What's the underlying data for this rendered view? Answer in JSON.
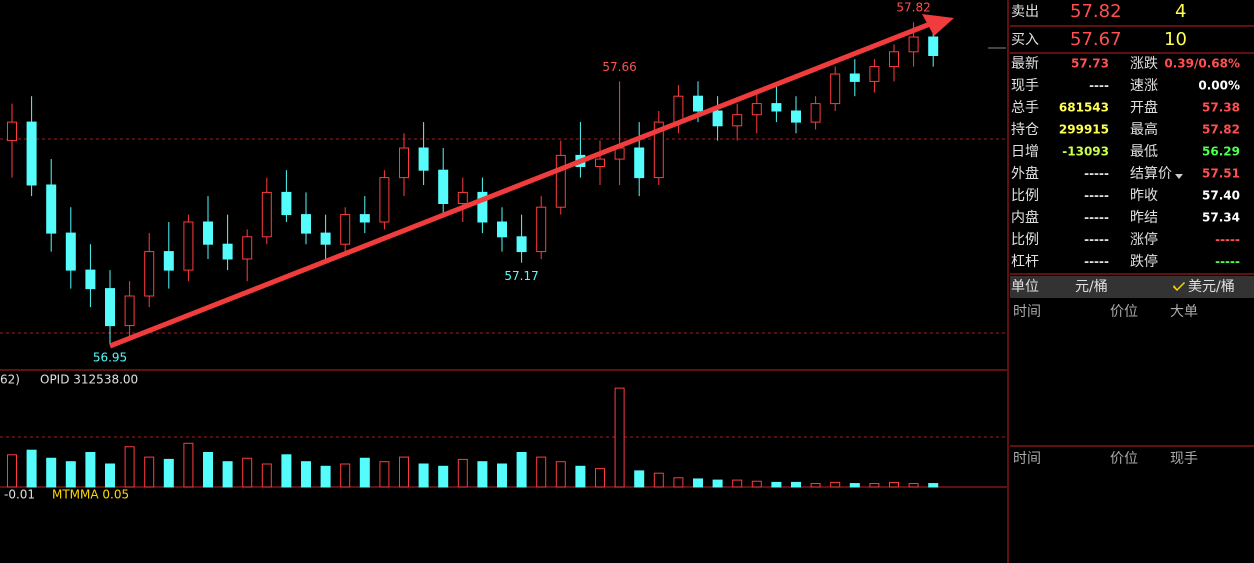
{
  "chart_data": {
    "type": "candlestick",
    "ylim": [
      56.88,
      57.88
    ],
    "up_color": "#ff3c3c",
    "down_color": "#54fcfc",
    "open": [
      57.5,
      57.55,
      57.38,
      57.25,
      57.15,
      57.1,
      57.0,
      57.08,
      57.2,
      57.15,
      57.28,
      57.22,
      57.18,
      57.24,
      57.36,
      57.3,
      57.25,
      57.22,
      57.3,
      57.28,
      57.4,
      57.48,
      57.42,
      57.33,
      57.36,
      57.28,
      57.24,
      57.2,
      57.32,
      57.46,
      57.43,
      57.45,
      57.48,
      57.4,
      57.55,
      57.62,
      57.58,
      57.54,
      57.57,
      57.6,
      57.58,
      57.55,
      57.6,
      57.68,
      57.66,
      57.7,
      57.74,
      57.78
    ],
    "high": [
      57.6,
      57.62,
      57.45,
      57.32,
      57.22,
      57.15,
      57.12,
      57.25,
      57.28,
      57.3,
      57.35,
      57.3,
      57.26,
      57.4,
      57.42,
      57.36,
      57.3,
      57.32,
      57.35,
      57.42,
      57.52,
      57.55,
      57.48,
      57.4,
      57.4,
      57.32,
      57.3,
      57.35,
      57.5,
      57.55,
      57.5,
      57.66,
      57.55,
      57.58,
      57.65,
      57.66,
      57.62,
      57.6,
      57.63,
      57.65,
      57.62,
      57.62,
      57.7,
      57.72,
      57.72,
      57.76,
      57.82,
      57.8
    ],
    "low": [
      57.4,
      57.35,
      57.2,
      57.1,
      57.05,
      56.95,
      56.97,
      57.05,
      57.1,
      57.12,
      57.18,
      57.15,
      57.12,
      57.22,
      57.28,
      57.22,
      57.18,
      57.2,
      57.25,
      57.26,
      57.35,
      57.38,
      57.3,
      57.28,
      57.25,
      57.2,
      57.17,
      57.18,
      57.3,
      57.4,
      57.38,
      57.38,
      57.35,
      57.38,
      57.52,
      57.55,
      57.5,
      57.5,
      57.52,
      57.55,
      57.52,
      57.53,
      57.58,
      57.62,
      57.63,
      57.66,
      57.7,
      57.7
    ],
    "close": [
      57.55,
      57.38,
      57.25,
      57.15,
      57.1,
      57.0,
      57.08,
      57.2,
      57.15,
      57.28,
      57.22,
      57.18,
      57.24,
      57.36,
      57.3,
      57.25,
      57.22,
      57.3,
      57.28,
      57.4,
      57.48,
      57.42,
      57.33,
      57.36,
      57.28,
      57.24,
      57.2,
      57.32,
      57.46,
      57.43,
      57.45,
      57.48,
      57.4,
      57.55,
      57.62,
      57.58,
      57.54,
      57.57,
      57.6,
      57.58,
      57.55,
      57.6,
      57.68,
      57.66,
      57.7,
      57.74,
      57.78,
      57.73
    ],
    "annotations": [
      {
        "value": 57.82,
        "label": "57.82"
      },
      {
        "value": 57.66,
        "label": "57.66"
      },
      {
        "value": 57.17,
        "label": "57.17"
      },
      {
        "value": 56.95,
        "label": "56.95"
      }
    ],
    "volume": {
      "ylim": [
        0,
        100
      ],
      "values": [
        28,
        32,
        25,
        22,
        30,
        20,
        35,
        26,
        24,
        38,
        30,
        22,
        25,
        20,
        28,
        22,
        18,
        20,
        25,
        22,
        26,
        20,
        18,
        24,
        22,
        20,
        30,
        26,
        22,
        18,
        16,
        86,
        14,
        12,
        8,
        7,
        6,
        6,
        5,
        4,
        4,
        3,
        4,
        3,
        3,
        4,
        3,
        3
      ]
    },
    "volume_labels": [
      "62)",
      "OPID 312538.00"
    ],
    "indicator_labels": [
      "-0.01",
      "MTMMA 0.05"
    ]
  },
  "quote": {
    "ask": [
      "卖出",
      "57.82",
      "4"
    ],
    "bid": [
      "买入",
      "57.67",
      "10"
    ],
    "rows": [
      [
        "最新",
        "57.73",
        "涨跌",
        "0.39/0.68%"
      ],
      [
        "现手",
        "----",
        "速涨",
        "0.00%"
      ],
      [
        "总手",
        "681543",
        "开盘",
        "57.38"
      ],
      [
        "持仓",
        "299915",
        "最高",
        "57.82"
      ],
      [
        "日增",
        "-13093",
        "最低",
        "56.29"
      ],
      [
        "外盘",
        "-----",
        "结算价",
        "57.51"
      ],
      [
        "比例",
        "-----",
        "昨收",
        "57.40"
      ],
      [
        "内盘",
        "-----",
        "昨结",
        "57.34"
      ],
      [
        "比例",
        "-----",
        "涨停",
        "-----"
      ],
      [
        "杠杆",
        "-----",
        "跌停",
        "-----"
      ]
    ],
    "row_colors": [
      [
        "#ff5050",
        "#ff5050"
      ],
      [
        "#e0e0e0",
        "#ffffff"
      ],
      [
        "#ffff54",
        "#ff5050"
      ],
      [
        "#ffff54",
        "#ff5050"
      ],
      [
        "#c8ff50",
        "#50ff50"
      ],
      [
        "#e0e0e0",
        "#ff5050"
      ],
      [
        "#e0e0e0",
        "#ffffff"
      ],
      [
        "#e0e0e0",
        "#ffffff"
      ],
      [
        "#e0e0e0",
        "#ff5050"
      ],
      [
        "#e0e0e0",
        "#50ff50"
      ]
    ],
    "unit": [
      "单位",
      "元/桶",
      "美元/桶"
    ],
    "table1": [
      "时间",
      "价位",
      "大单"
    ],
    "table2": [
      "时间",
      "价位",
      "现手"
    ]
  }
}
